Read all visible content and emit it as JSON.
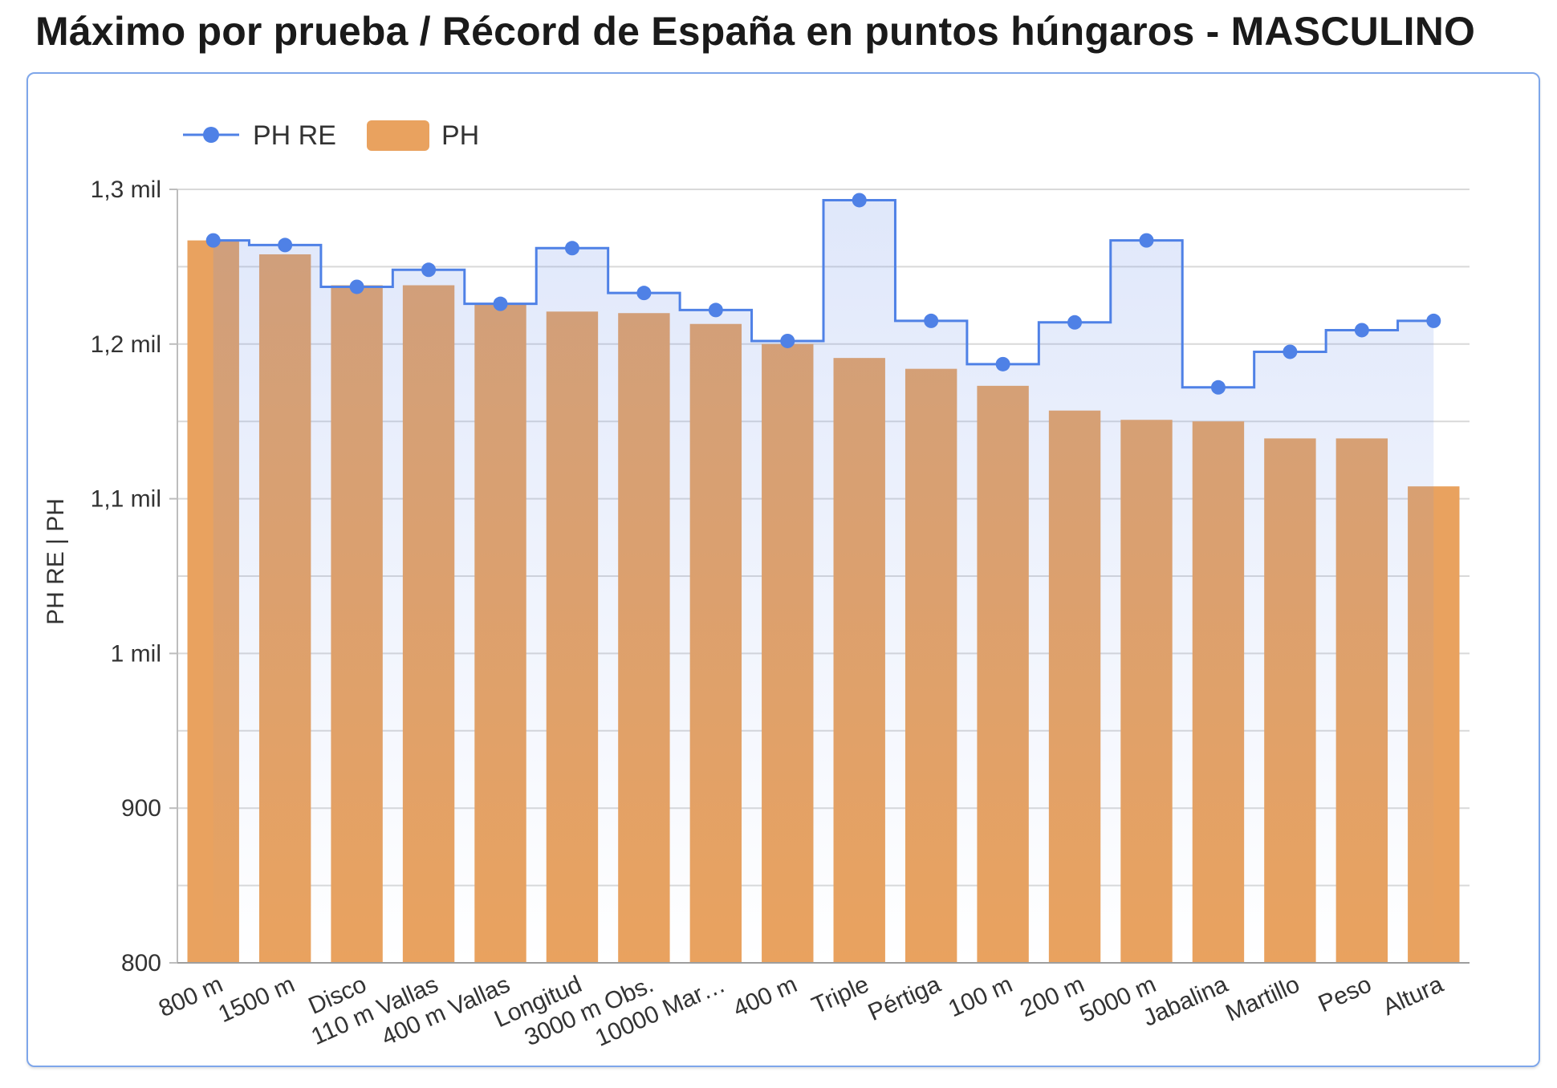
{
  "page": {
    "title": "Máximo por prueba / Récord de España en puntos húngaros - MASCULINO"
  },
  "chart_data": {
    "type": "bar",
    "categories": [
      "800 m",
      "1500 m",
      "Disco",
      "110 m Vallas",
      "400 m Vallas",
      "Longitud",
      "3000 m Obs.",
      "10000 Mar…",
      "400 m",
      "Triple",
      "Pértiga",
      "100 m",
      "200 m",
      "5000 m",
      "Jabalina",
      "Martillo",
      "Peso",
      "Altura"
    ],
    "series": [
      {
        "name": "PH RE",
        "kind": "stepped-area-line",
        "color": "#4f81e6",
        "values": [
          1267,
          1264,
          1237,
          1248,
          1226,
          1262,
          1233,
          1222,
          1202,
          1293,
          1215,
          1187,
          1214,
          1267,
          1172,
          1195,
          1209,
          1215
        ]
      },
      {
        "name": "PH",
        "kind": "bar",
        "color": "#e9a25f",
        "values": [
          1267,
          1258,
          1238,
          1238,
          1226,
          1221,
          1220,
          1213,
          1200,
          1191,
          1184,
          1173,
          1157,
          1151,
          1150,
          1139,
          1139,
          1108
        ]
      }
    ],
    "ylabel": "PH RE | PH",
    "ylim": [
      800,
      1300
    ],
    "yticks": [
      {
        "value": 800,
        "label": "800"
      },
      {
        "value": 900,
        "label": "900"
      },
      {
        "value": 1000,
        "label": "1 mil"
      },
      {
        "value": 1100,
        "label": "1,1 mil"
      },
      {
        "value": 1200,
        "label": "1,2 mil"
      },
      {
        "value": 1300,
        "label": "1,3 mil"
      }
    ],
    "grid": true,
    "legend_position": "top-left"
  }
}
